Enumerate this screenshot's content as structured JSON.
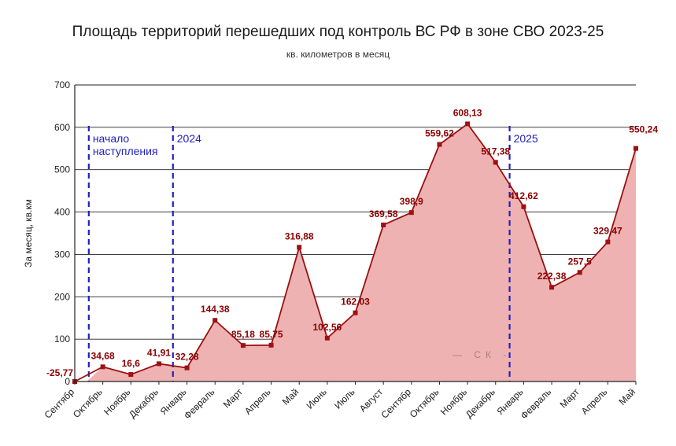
{
  "chart_data": {
    "type": "area",
    "title": "Площадь территорий перешедших под контроль ВС РФ в зоне СВО 2023-25",
    "subtitle": "кв. километров в месяц",
    "xlabel": "",
    "ylabel": "За месяц, кв.км",
    "ylim": [
      0,
      700
    ],
    "yticks": [
      0,
      100,
      200,
      300,
      400,
      500,
      600,
      700
    ],
    "grid": true,
    "categories": [
      "Сентябр",
      "Октябрь",
      "Ноябрь",
      "Декабрь",
      "Январь",
      "Февраль",
      "Март",
      "Апрель",
      "Май",
      "Июнь",
      "Июль",
      "Август",
      "Сентябр",
      "Октябрь",
      "Ноябрь",
      "Декабрь",
      "Январь",
      "Февраль",
      "Март",
      "Апрель",
      "Май"
    ],
    "series": [
      {
        "values": [
          -25.77,
          34.68,
          16.6,
          41.91,
          32.28,
          144.38,
          85.18,
          85.75,
          316.88,
          102.56,
          162.03,
          369.58,
          398.9,
          559.62,
          608.13,
          517.38,
          412.62,
          222.38,
          257.5,
          329.47,
          550.24
        ],
        "labels": [
          "-25,77",
          "34,68",
          "16,6",
          "41,91",
          "32,28",
          "144,38",
          "85,18",
          "85,75",
          "316,88",
          "102,56",
          "162,03",
          "369,58",
          "398,9",
          "559,62",
          "608,13",
          "517,38",
          "412,62",
          "222,38",
          "257,5",
          "329,47",
          "550,24"
        ]
      }
    ],
    "annotations": [
      {
        "text_lines": [
          "начало",
          "наступления"
        ],
        "after_category_index": 0
      },
      {
        "text_lines": [
          "2024"
        ],
        "after_category_index": 3
      },
      {
        "text_lines": [
          "2025"
        ],
        "after_category_index": 15
      }
    ],
    "watermark": "— СК -",
    "colors": {
      "line": "#9b1010",
      "marker": "#a01010",
      "fill": "#eeb2b2",
      "annotation": "#2222bb",
      "grid": "#222222"
    }
  }
}
